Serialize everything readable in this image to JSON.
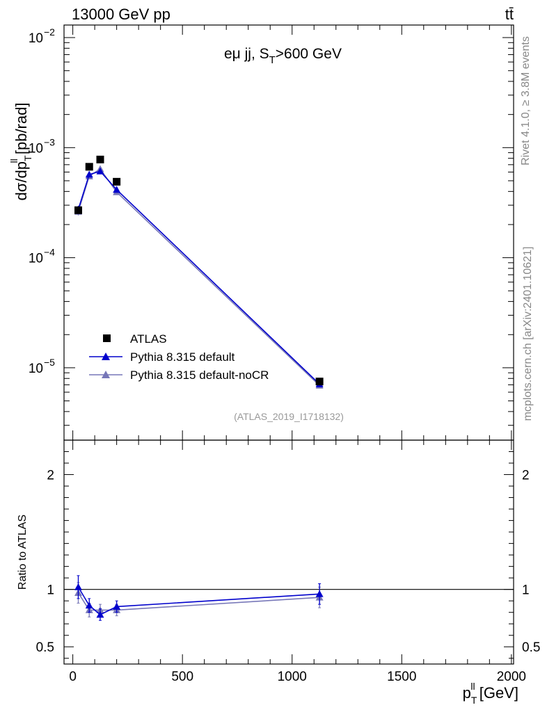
{
  "header": {
    "beam": "13000 GeV pp",
    "process": "tt̄"
  },
  "side_labels": {
    "rivet": "Rivet 4.1.0, ≥ 3.8M events",
    "mcplots": "mcplots.cern.ch [arXiv:2401.10621]"
  },
  "chart_data": [
    {
      "type": "scatter",
      "panel": "main",
      "title": "eμ jj, S_T>600 GeV",
      "title_parts": {
        "main": "eμ jj, S",
        "sub": "T",
        "rest": ">600 GeV"
      },
      "analysis_id": "(ATLAS_2019_I1718132)",
      "ylabel_parts": {
        "a": "dσ/dp",
        "sup": "ll",
        "sub": "T",
        "b": " [pb/rad]"
      },
      "xlabel_parts": {
        "a": "p",
        "sup": "ll",
        "sub": "T",
        "b": " [GeV]"
      },
      "yscale": "log",
      "ylim": [
        2.2e-06,
        0.013
      ],
      "xlim": [
        -40,
        2010
      ],
      "x_ticks": [
        "0",
        "500",
        "1000",
        "1500",
        "2000"
      ],
      "x_tick_values": [
        0,
        500,
        1000,
        1500,
        2000
      ],
      "y_ticks": [
        {
          "base": "10",
          "exp": "−2",
          "value": 0.01
        },
        {
          "base": "10",
          "exp": "−3",
          "value": 0.001
        },
        {
          "base": "10",
          "exp": "−4",
          "value": 0.0001
        },
        {
          "base": "10",
          "exp": "−5",
          "value": 1e-05
        }
      ],
      "legend_position": "lower-left",
      "series": [
        {
          "name": "ATLAS",
          "marker": "square",
          "color": "#000000",
          "points": [
            {
              "x": 25,
              "y": 0.00027,
              "err": 2e-05
            },
            {
              "x": 75,
              "y": 0.00067,
              "err": 3e-05
            },
            {
              "x": 125,
              "y": 0.00078,
              "err": 3e-05
            },
            {
              "x": 200,
              "y": 0.00049,
              "err": 2e-05
            },
            {
              "x": 1125,
              "y": 7.5e-06,
              "err": 4e-07
            }
          ]
        },
        {
          "name": "Pythia 8.315 default",
          "marker": "triangle",
          "color": "#0000cc",
          "points": [
            {
              "x": 25,
              "y": 0.000275,
              "err": 2e-05
            },
            {
              "x": 75,
              "y": 0.00057,
              "err": 3e-05
            },
            {
              "x": 125,
              "y": 0.00061,
              "err": 3e-05
            },
            {
              "x": 200,
              "y": 0.000415,
              "err": 2e-05
            },
            {
              "x": 1125,
              "y": 7.1e-06,
              "err": 4e-07
            }
          ]
        },
        {
          "name": "Pythia 8.315 default-noCR",
          "marker": "triangle",
          "color": "#7777b8",
          "points": [
            {
              "x": 25,
              "y": 0.000262,
              "err": 2e-05
            },
            {
              "x": 75,
              "y": 0.00055,
              "err": 3e-05
            },
            {
              "x": 125,
              "y": 0.00064,
              "err": 3e-05
            },
            {
              "x": 200,
              "y": 0.000395,
              "err": 2e-05
            },
            {
              "x": 1125,
              "y": 6.9e-06,
              "err": 4e-07
            }
          ]
        }
      ]
    },
    {
      "type": "scatter",
      "panel": "ratio",
      "ylabel": "Ratio to ATLAS",
      "ylim": [
        0.35,
        2.3
      ],
      "y_ticks": [
        "0.5",
        "1",
        "2"
      ],
      "y_tick_values": [
        0.5,
        1,
        2
      ],
      "reference_line": 1,
      "series": [
        {
          "name": "Pythia 8.315 default",
          "color": "#0000cc",
          "points": [
            {
              "x": 25,
              "y": 1.02,
              "err": 0.1
            },
            {
              "x": 75,
              "y": 0.86,
              "err": 0.06
            },
            {
              "x": 125,
              "y": 0.78,
              "err": 0.05
            },
            {
              "x": 200,
              "y": 0.85,
              "err": 0.05
            },
            {
              "x": 1125,
              "y": 0.96,
              "err": 0.09
            }
          ]
        },
        {
          "name": "Pythia 8.315 default-noCR",
          "color": "#7777b8",
          "points": [
            {
              "x": 25,
              "y": 0.97,
              "err": 0.09
            },
            {
              "x": 75,
              "y": 0.82,
              "err": 0.06
            },
            {
              "x": 125,
              "y": 0.82,
              "err": 0.05
            },
            {
              "x": 200,
              "y": 0.82,
              "err": 0.05
            },
            {
              "x": 1125,
              "y": 0.93,
              "err": 0.09
            }
          ]
        }
      ]
    }
  ]
}
